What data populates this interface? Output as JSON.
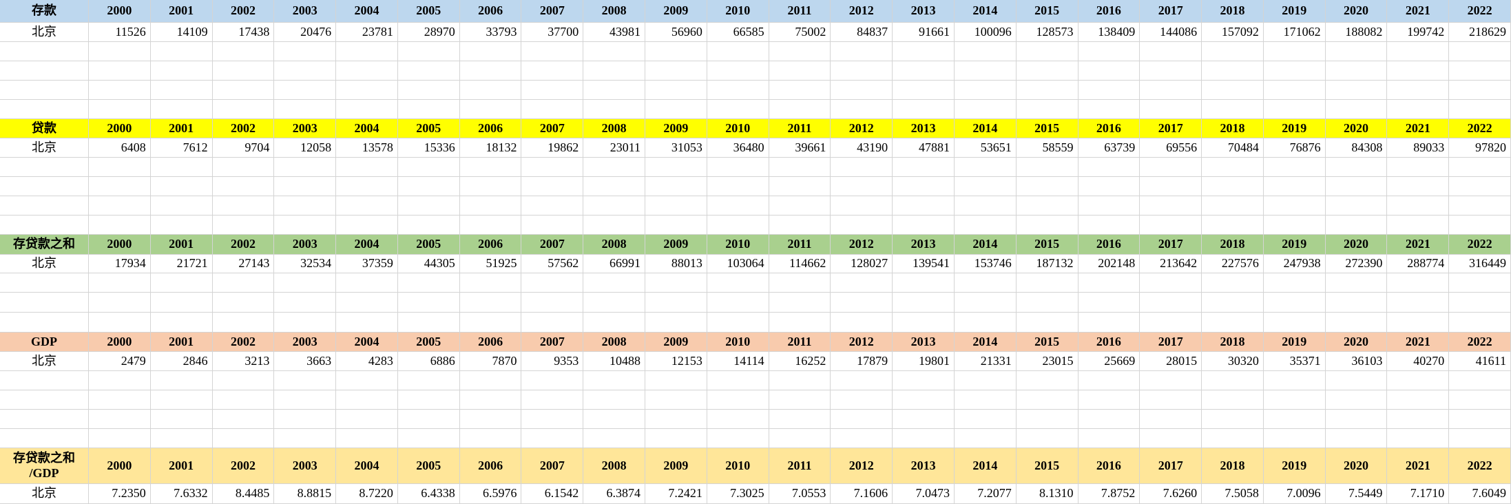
{
  "tables": [
    {
      "title": "存款",
      "years": [
        "2000",
        "2001",
        "2002",
        "2003",
        "2004",
        "2005",
        "2006",
        "2007",
        "2008",
        "2009",
        "2010",
        "2011",
        "2012",
        "2013",
        "2014",
        "2015",
        "2016",
        "2017",
        "2018",
        "2019",
        "2020",
        "2021",
        "2022"
      ],
      "region": "北京",
      "values": [
        "11526",
        "14109",
        "17438",
        "20476",
        "23781",
        "28970",
        "33793",
        "37700",
        "43981",
        "56960",
        "66585",
        "75002",
        "84837",
        "91661",
        "100096",
        "128573",
        "138409",
        "144086",
        "157092",
        "171062",
        "188082",
        "199742",
        "218629"
      ]
    },
    {
      "title": "贷款",
      "years": [
        "2000",
        "2001",
        "2002",
        "2003",
        "2004",
        "2005",
        "2006",
        "2007",
        "2008",
        "2009",
        "2010",
        "2011",
        "2012",
        "2013",
        "2014",
        "2015",
        "2016",
        "2017",
        "2018",
        "2019",
        "2020",
        "2021",
        "2022"
      ],
      "region": "北京",
      "values": [
        "6408",
        "7612",
        "9704",
        "12058",
        "13578",
        "15336",
        "18132",
        "19862",
        "23011",
        "31053",
        "36480",
        "39661",
        "43190",
        "47881",
        "53651",
        "58559",
        "63739",
        "69556",
        "70484",
        "76876",
        "84308",
        "89033",
        "97820"
      ]
    },
    {
      "title": "存贷款之和",
      "years": [
        "2000",
        "2001",
        "2002",
        "2003",
        "2004",
        "2005",
        "2006",
        "2007",
        "2008",
        "2009",
        "2010",
        "2011",
        "2012",
        "2013",
        "2014",
        "2015",
        "2016",
        "2017",
        "2018",
        "2019",
        "2020",
        "2021",
        "2022"
      ],
      "region": "北京",
      "values": [
        "17934",
        "21721",
        "27143",
        "32534",
        "37359",
        "44305",
        "51925",
        "57562",
        "66991",
        "88013",
        "103064",
        "114662",
        "128027",
        "139541",
        "153746",
        "187132",
        "202148",
        "213642",
        "227576",
        "247938",
        "272390",
        "288774",
        "316449"
      ]
    },
    {
      "title": "GDP",
      "years": [
        "2000",
        "2001",
        "2002",
        "2003",
        "2004",
        "2005",
        "2006",
        "2007",
        "2008",
        "2009",
        "2010",
        "2011",
        "2012",
        "2013",
        "2014",
        "2015",
        "2016",
        "2017",
        "2018",
        "2019",
        "2020",
        "2021",
        "2022"
      ],
      "region": "北京",
      "values": [
        "2479",
        "2846",
        "3213",
        "3663",
        "4283",
        "6886",
        "7870",
        "9353",
        "10488",
        "12153",
        "14114",
        "16252",
        "17879",
        "19801",
        "21331",
        "23015",
        "25669",
        "28015",
        "30320",
        "35371",
        "36103",
        "40270",
        "41611"
      ]
    },
    {
      "title": "存贷款之和\n/GDP",
      "years": [
        "2000",
        "2001",
        "2002",
        "2003",
        "2004",
        "2005",
        "2006",
        "2007",
        "2008",
        "2009",
        "2010",
        "2011",
        "2012",
        "2013",
        "2014",
        "2015",
        "2016",
        "2017",
        "2018",
        "2019",
        "2020",
        "2021",
        "2022"
      ],
      "region": "北京",
      "values": [
        "7.2350",
        "7.6332",
        "8.4485",
        "8.8815",
        "8.7220",
        "6.4338",
        "6.5976",
        "6.1542",
        "6.3874",
        "7.2421",
        "7.3025",
        "7.0553",
        "7.1606",
        "7.0473",
        "7.2077",
        "8.1310",
        "7.8752",
        "7.6260",
        "7.5058",
        "7.0096",
        "7.5449",
        "7.1710",
        "7.6049"
      ]
    }
  ]
}
